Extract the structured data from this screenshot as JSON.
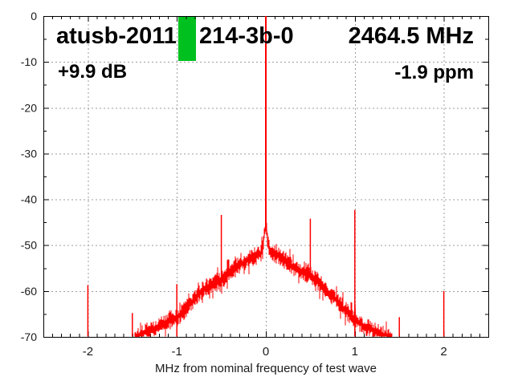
{
  "header": {
    "title_left": "atusb-2011",
    "title_mid": "214-3b-0",
    "frequency": "2464.5 MHz",
    "gain": "+9.9 dB",
    "ppm": "-1.9 ppm"
  },
  "colors": {
    "trace": "#ff0000",
    "marker": "#00c020",
    "grid": "#9e9e9e",
    "axis": "#000000",
    "tick_text": "#1a1a1a",
    "background": "#ffffff"
  },
  "chart_data": {
    "type": "line",
    "title": "",
    "xlabel": "MHz from nominal frequency of test wave",
    "ylabel": "",
    "xlim": [
      -2.5,
      2.5
    ],
    "ylim": [
      -70,
      0
    ],
    "grid": true,
    "x_major_ticks": [
      -2,
      -1,
      0,
      1,
      2
    ],
    "x_tick_labels": [
      "-2",
      "-1",
      "0",
      "1",
      "2"
    ],
    "x_minor_step": 0.1,
    "y_major_ticks": [
      0,
      -10,
      -20,
      -30,
      -40,
      -50,
      -60,
      -70
    ],
    "y_tick_labels": [
      "0",
      "-10",
      "-20",
      "-30",
      "-40",
      "-50",
      "-60",
      "-70"
    ],
    "y_minor_step": 5,
    "carrier": {
      "x": 0.0,
      "top_db": 0.0,
      "base_db": -47.0
    },
    "spurs": [
      {
        "x": -2.0,
        "db": -58.7,
        "base_db": -70
      },
      {
        "x": -1.5,
        "db": -64.8,
        "base_db": -70
      },
      {
        "x": -1.0,
        "db": -58.5,
        "base_db": -70
      },
      {
        "x": -0.5,
        "db": -43.4,
        "base_db": -58.5
      },
      {
        "x": 0.5,
        "db": -44.2,
        "base_db": -57.5
      },
      {
        "x": 1.0,
        "db": -42.3,
        "base_db": -70
      },
      {
        "x": 1.5,
        "db": -65.7,
        "base_db": -70
      },
      {
        "x": 2.0,
        "db": -60.0,
        "base_db": -70
      }
    ],
    "noise_envelope": [
      [
        -1.48,
        -70.5
      ],
      [
        -1.4,
        -69.3
      ],
      [
        -1.3,
        -68.6
      ],
      [
        -1.2,
        -67.8
      ],
      [
        -1.1,
        -66.8
      ],
      [
        -1.0,
        -65.8
      ],
      [
        -0.9,
        -64.0
      ],
      [
        -0.8,
        -61.6
      ],
      [
        -0.7,
        -59.6
      ],
      [
        -0.6,
        -58.4
      ],
      [
        -0.5,
        -57.6
      ],
      [
        -0.4,
        -55.9
      ],
      [
        -0.3,
        -54.4
      ],
      [
        -0.2,
        -53.2
      ],
      [
        -0.12,
        -52.4
      ],
      [
        -0.06,
        -52.0
      ],
      [
        -0.035,
        -50.8
      ],
      [
        -0.015,
        -47.5
      ],
      [
        0.0,
        -46.2
      ],
      [
        0.015,
        -47.5
      ],
      [
        0.035,
        -50.6
      ],
      [
        0.06,
        -51.6
      ],
      [
        0.12,
        -52.1
      ],
      [
        0.2,
        -53.1
      ],
      [
        0.3,
        -54.6
      ],
      [
        0.4,
        -55.6
      ],
      [
        0.5,
        -56.6
      ],
      [
        0.6,
        -58.3
      ],
      [
        0.7,
        -60.2
      ],
      [
        0.8,
        -62.2
      ],
      [
        0.9,
        -64.3
      ],
      [
        0.995,
        -66.2
      ],
      [
        1.0,
        -60.0
      ],
      [
        1.005,
        -66.3
      ],
      [
        1.1,
        -67.6
      ],
      [
        1.2,
        -68.5
      ],
      [
        1.3,
        -69.4
      ],
      [
        1.42,
        -70.6
      ]
    ],
    "noise_jitter_db": 1.6,
    "marker": {
      "x0": -0.984,
      "x1": -0.785,
      "db_top": 0.0,
      "db_bottom": -9.8
    }
  }
}
